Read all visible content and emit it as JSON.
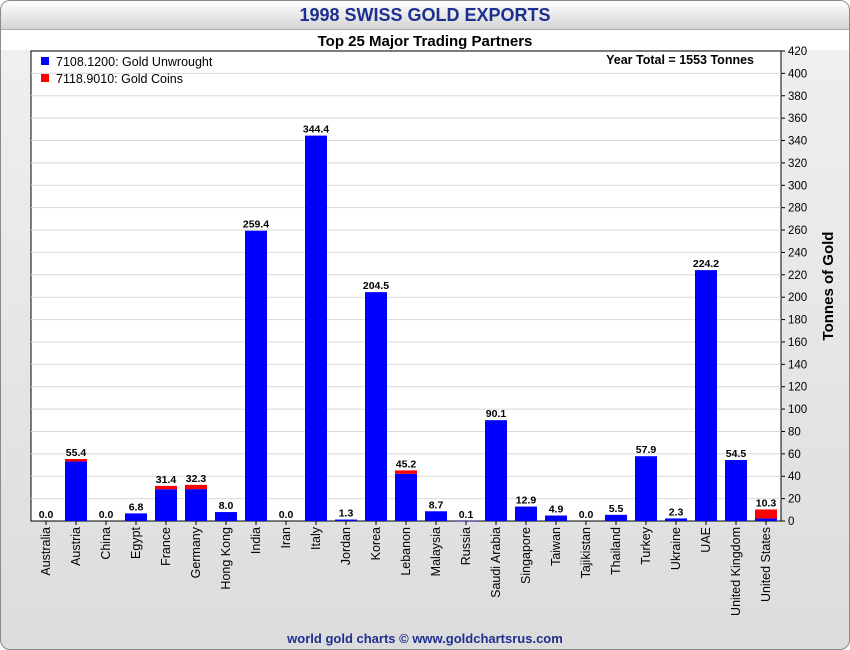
{
  "header": {
    "title": "1998 SWISS GOLD EXPORTS"
  },
  "footer": {
    "credit": "world gold charts © www.goldchartsrus.com"
  },
  "chart_data": {
    "type": "bar",
    "stacked": true,
    "title": "Top 25 Major Trading Partners",
    "annotation": "Year Total = 1553 Tonnes",
    "ylabel": "Tonnes of Gold",
    "xlabel": "",
    "ylim": [
      0,
      420
    ],
    "ytick_step": 20,
    "grid": true,
    "legend_position": "top-left",
    "categories": [
      "Australia",
      "Austria",
      "China",
      "Egypt",
      "France",
      "Germany",
      "Hong Kong",
      "India",
      "Iran",
      "Italy",
      "Jordan",
      "Korea",
      "Lebanon",
      "Malaysia",
      "Russia",
      "Saudi Arabia",
      "Singapore",
      "Taiwan",
      "Tajikistan",
      "Thailand",
      "Turkey",
      "Ukraine",
      "UAE",
      "United Kingdom",
      "United States"
    ],
    "totals": [
      "0.0",
      "55.4",
      "0.0",
      "6.8",
      "31.4",
      "32.3",
      "8.0",
      "259.4",
      "0.0",
      "344.4",
      "1.3",
      "204.5",
      "45.2",
      "8.7",
      "0.1",
      "90.1",
      "12.9",
      "4.9",
      "0.0",
      "5.5",
      "57.9",
      "2.3",
      "224.2",
      "54.5",
      "10.3"
    ],
    "series": [
      {
        "name": "7108.1200: Gold Unwrought",
        "color": "#0000ff",
        "values": [
          0.0,
          53.2,
          0.0,
          6.8,
          28.4,
          28.5,
          8.0,
          259.4,
          0.0,
          344.4,
          1.3,
          204.5,
          42.2,
          8.7,
          0.1,
          90.1,
          12.9,
          4.9,
          0.0,
          5.5,
          57.9,
          2.3,
          224.2,
          54.5,
          2.3
        ]
      },
      {
        "name": "7118.9010: Gold Coins",
        "color": "#ff0000",
        "values": [
          0.0,
          2.2,
          0.0,
          0.0,
          3.0,
          3.8,
          0.0,
          0.0,
          0.0,
          0.0,
          0.0,
          0.0,
          3.0,
          0.0,
          0.0,
          0.0,
          0.0,
          0.0,
          0.0,
          0.0,
          0.0,
          0.0,
          0.0,
          0.0,
          8.0
        ]
      }
    ]
  }
}
